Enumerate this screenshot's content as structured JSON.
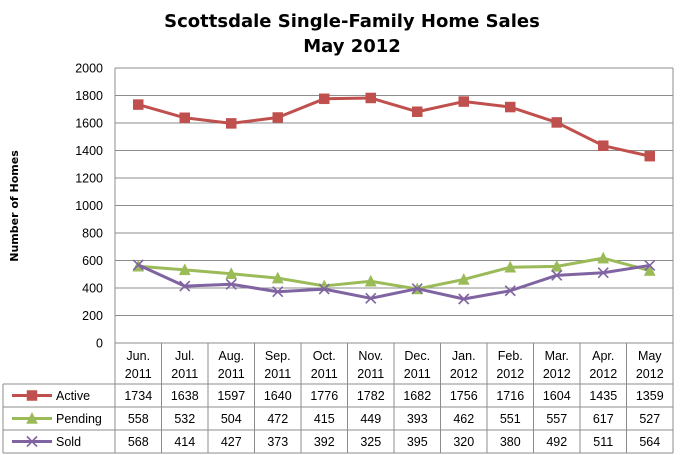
{
  "chart_data": {
    "type": "line",
    "title": "Scottsdale Single-Family  Home Sales",
    "subtitle": "May 2012",
    "ylabel": "Number of Homes",
    "xlabel": "",
    "ylim": [
      0,
      2000
    ],
    "yticks": [
      0,
      200,
      400,
      600,
      800,
      1000,
      1200,
      1400,
      1600,
      1800,
      2000
    ],
    "grid": true,
    "legend": "data-table-left",
    "categories": [
      [
        "Jun.",
        "2011"
      ],
      [
        "Jul.",
        "2011"
      ],
      [
        "Aug.",
        "2011"
      ],
      [
        "Sep.",
        "2011"
      ],
      [
        "Oct.",
        "2011"
      ],
      [
        "Nov.",
        "2011"
      ],
      [
        "Dec.",
        "2011"
      ],
      [
        "Jan.",
        "2012"
      ],
      [
        "Feb.",
        "2012"
      ],
      [
        "Mar.",
        "2012"
      ],
      [
        "Apr.",
        "2012"
      ],
      [
        "May",
        "2012"
      ]
    ],
    "series": [
      {
        "name": "Active",
        "color": "#C0504D",
        "marker": "square",
        "values": [
          1734,
          1638,
          1597,
          1640,
          1776,
          1782,
          1682,
          1756,
          1716,
          1604,
          1435,
          1359
        ]
      },
      {
        "name": "Pending",
        "color": "#9BBB59",
        "marker": "triangle",
        "values": [
          558,
          532,
          504,
          472,
          415,
          449,
          393,
          462,
          551,
          557,
          617,
          527
        ]
      },
      {
        "name": "Sold",
        "color": "#8064A2",
        "marker": "x",
        "values": [
          568,
          414,
          427,
          373,
          392,
          325,
          395,
          320,
          380,
          492,
          511,
          564
        ]
      }
    ]
  }
}
